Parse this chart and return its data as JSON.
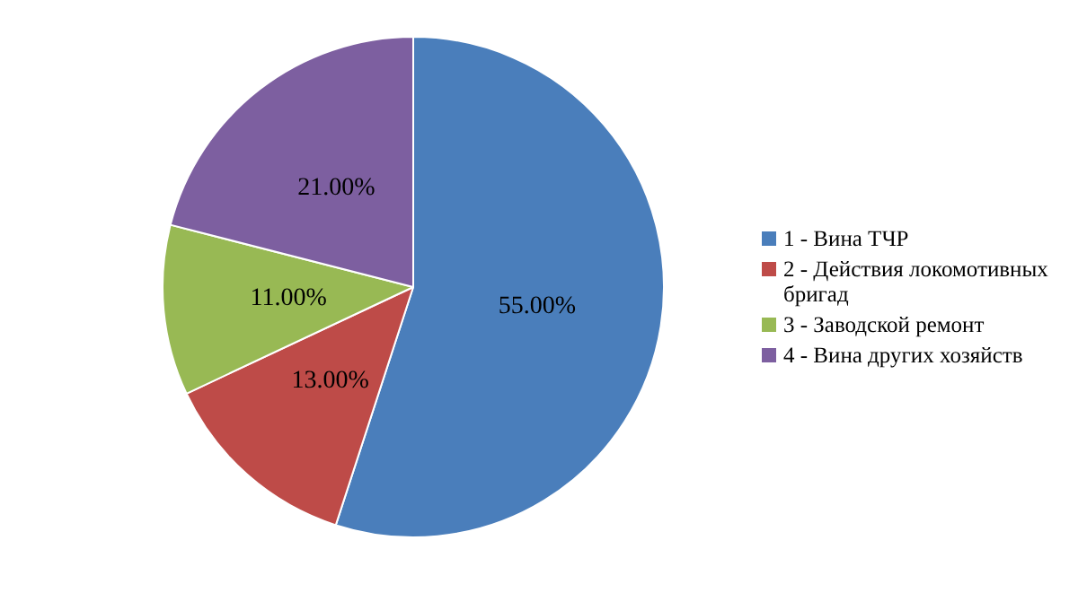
{
  "chart_data": {
    "type": "pie",
    "categories": [
      "1 - Вина ТЧР",
      "2 - Действия локомотивных бригад",
      "3 - Заводской ремонт",
      "4 - Вина других хозяйств"
    ],
    "values": [
      55,
      13,
      11,
      21
    ],
    "colors": [
      "#4a7ebb",
      "#be4b48",
      "#98b954",
      "#7d5fa0"
    ],
    "value_labels": [
      "55.00%",
      "13.00%",
      "11.00%",
      "21.00%"
    ],
    "legend": "right"
  }
}
